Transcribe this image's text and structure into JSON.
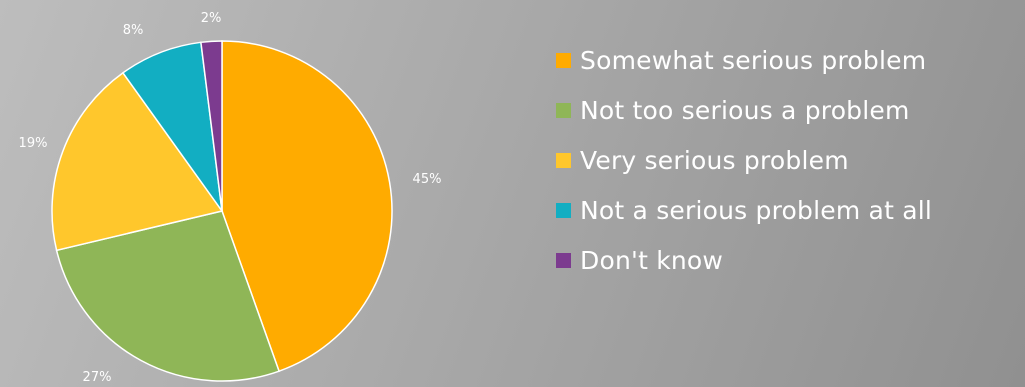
{
  "chart_data": {
    "type": "pie",
    "title": "",
    "start_angle_deg": 0,
    "direction": "clockwise",
    "legend_position": "right",
    "slices": [
      {
        "label": "Somewhat serious problem",
        "value": 45,
        "value_label": "45%",
        "color": "#FFAB00"
      },
      {
        "label": "Not too serious a problem",
        "value": 27,
        "value_label": "27%",
        "color": "#8FB657"
      },
      {
        "label": "Very serious problem",
        "value": 19,
        "value_label": "19%",
        "color": "#FFC72C"
      },
      {
        "label": "Not a serious problem at all",
        "value": 8,
        "value_label": "8%",
        "color": "#12AEC2"
      },
      {
        "label": "Don't know",
        "value": 2,
        "value_label": "2%",
        "color": "#7C3B8F"
      }
    ]
  },
  "legend": {
    "items": [
      {
        "label": "Somewhat serious problem",
        "color": "#FFAB00"
      },
      {
        "label": "Not too serious a problem",
        "color": "#8FB657"
      },
      {
        "label": "Very serious problem",
        "color": "#FFC72C"
      },
      {
        "label": "Not a serious problem at all",
        "color": "#12AEC2"
      },
      {
        "label": "Don't know",
        "color": "#7C3B8F"
      }
    ]
  }
}
